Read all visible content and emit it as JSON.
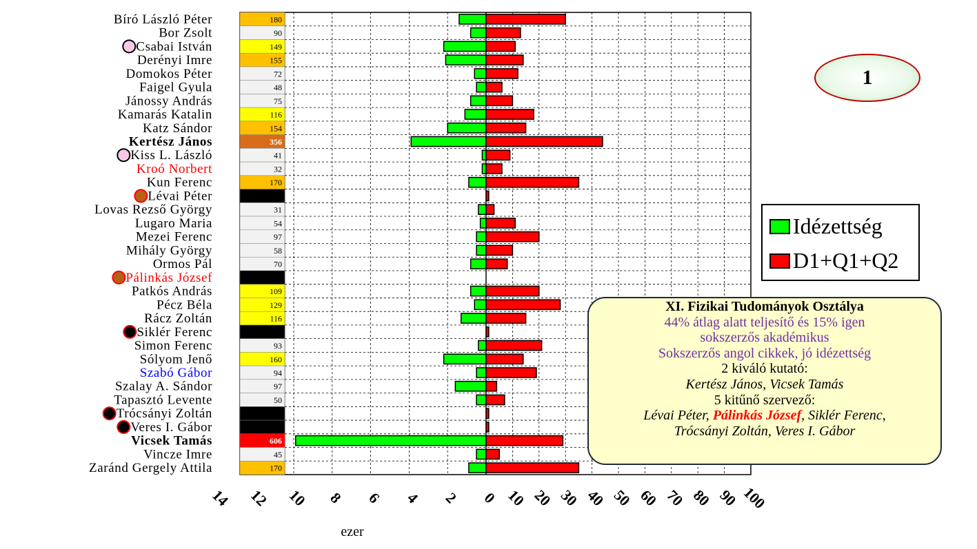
{
  "chart_data": {
    "type": "bar",
    "orientation": "horizontal-diverging",
    "categories": [
      "Bíró László Péter",
      "Bor Zsolt",
      "Csabai István",
      "Derényi Imre",
      "Domokos Péter",
      "Faigel Gyula",
      "Jánossy András",
      "Kamarás Katalin",
      "Katz Sándor",
      "Kertész János",
      "Kiss L. László",
      "Kroó Norbert",
      "Kun Ferenc",
      "Lévai Péter",
      "Lovas Rezső György",
      "Lugaro Maria",
      "Mezei Ferenc",
      "Mihály György",
      "Ormos Pál",
      "Pálinkás József",
      "Patkós András",
      "Pécz Béla",
      "Rácz Zoltán",
      "Siklér Ferenc",
      "Simon Ferenc",
      "Sólyom Jenő",
      "Szabó Gábor",
      "Szalay A. Sándor",
      "Tapasztó Levente",
      "Trócsányi Zoltán",
      "Veres I. Gábor",
      "Vicsek Tamás",
      "Vincze Imre",
      "Zaránd Gergely Attila"
    ],
    "name_styles": [
      "normal",
      "normal",
      "normal",
      "normal",
      "normal",
      "normal",
      "normal",
      "normal",
      "normal",
      "bold",
      "normal",
      "red",
      "normal",
      "normal",
      "normal",
      "normal",
      "normal",
      "normal",
      "normal",
      "red",
      "normal",
      "normal",
      "normal",
      "normal",
      "normal",
      "normal",
      "blue",
      "normal",
      "normal",
      "normal",
      "normal",
      "bold",
      "normal",
      "normal"
    ],
    "markers": [
      "",
      "",
      "pink",
      "",
      "",
      "",
      "",
      "",
      "",
      "",
      "pink",
      "",
      "",
      "brown",
      "",
      "",
      "",
      "",
      "",
      "brown",
      "",
      "",
      "",
      "black",
      "",
      "",
      "",
      "",
      "",
      "black",
      "black",
      "",
      "",
      ""
    ],
    "score_labels": [
      "180",
      "90",
      "149",
      "155",
      "72",
      "48",
      "75",
      "116",
      "154",
      "356",
      "41",
      "32",
      "170",
      "",
      "31",
      "54",
      "97",
      "58",
      "70",
      "",
      "109",
      "129",
      "116",
      "",
      "93",
      "160",
      "94",
      "97",
      "50",
      "",
      "",
      "606",
      "45",
      "170"
    ],
    "score_colors": [
      "orange",
      "white",
      "yellow",
      "orange",
      "white",
      "white",
      "white",
      "yellow",
      "orange",
      "darkorange",
      "white",
      "white",
      "orange",
      "black",
      "white",
      "white",
      "white",
      "white",
      "white",
      "black",
      "yellow",
      "yellow",
      "yellow",
      "black",
      "white",
      "yellow",
      "white",
      "white",
      "white",
      "black",
      "black",
      "red",
      "white",
      "orange"
    ],
    "series": [
      {
        "name": "Idézettség",
        "color": "#00ff00",
        "values": [
          1.4,
          0.8,
          2.2,
          2.1,
          0.6,
          0.5,
          0.8,
          1.1,
          2.0,
          3.9,
          0.2,
          0.2,
          0.9,
          0,
          0.4,
          0.3,
          0.5,
          0.5,
          0.8,
          0,
          0.8,
          0.6,
          1.3,
          0,
          0.4,
          2.2,
          0.5,
          1.6,
          0.5,
          0,
          0,
          9.9,
          0.5,
          0.9
        ]
      },
      {
        "name": "D1+Q1+Q2",
        "color": "#ff0000",
        "values": [
          30,
          13,
          11,
          14,
          12,
          6,
          10,
          18,
          15,
          44,
          9,
          6,
          35,
          1,
          3,
          11,
          20,
          10,
          8,
          0,
          20,
          28,
          15,
          1,
          21,
          14,
          19,
          4,
          7,
          1,
          1,
          29,
          5,
          35
        ]
      }
    ],
    "left_ticks": [
      "14",
      "12",
      "10",
      "8",
      "6",
      "4",
      "2",
      "0"
    ],
    "right_ticks": [
      "10",
      "20",
      "30",
      "40",
      "50",
      "60",
      "70",
      "80",
      "90",
      "100"
    ],
    "xlabel": "ezer",
    "grid": true,
    "legend_position": "right"
  },
  "badge": {
    "label": "1"
  },
  "legend": {
    "item1": "Idézettség",
    "item2": "D1+Q1+Q2"
  },
  "callout": {
    "title": "XI. Fizikai Tudományok Osztálya",
    "line2": "44% átlag alatt teljesítő és 15% igen",
    "line3": "sokszerzős akadémikus",
    "line4": "Sokszerzős angol cikkek, jó idézettség",
    "line5": "2 kiváló kutató:",
    "line6": "Kertész János, Vicsek Tamás",
    "line7": "5 kitűnő szervező:",
    "line8a": "Lévai Péter, ",
    "line8b": "Pálinkás József",
    "line8c": ", Siklér Ferenc,",
    "line9": "Trócsányi Zoltán, Veres I. Gábor"
  },
  "colors": {
    "green": "#00ff00",
    "red": "#ff0000",
    "orange": "#ffc000",
    "yellow": "#ffff00",
    "darkorange": "#d86c18",
    "white": "#f2f2f2",
    "black": "#000000",
    "pink": "#f8c8e8",
    "brown": "#b86018",
    "purple": "#7030a0",
    "blue": "#0000ff"
  }
}
